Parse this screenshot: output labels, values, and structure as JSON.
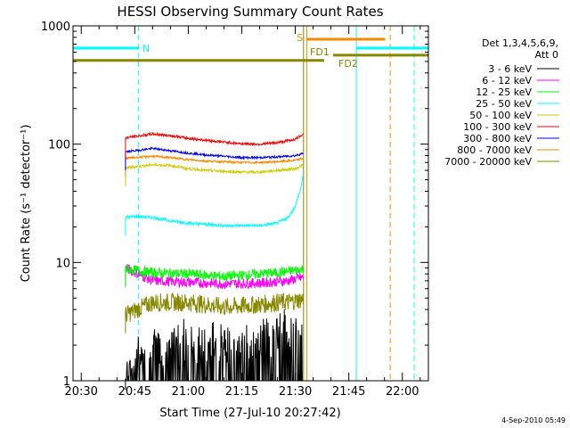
{
  "chart_data": {
    "type": "line",
    "title": "HESSI Observing Summary Count Rates",
    "xlabel": "Start Time (27-Jul-10 20:27:42)",
    "ylabel": "Count Rate (s⁻¹ detector⁻¹)",
    "y_scale": "log",
    "ylim": [
      1,
      1000
    ],
    "x_unit": "minutes after 20:27:42",
    "xlim": [
      -2.3,
      97.3
    ],
    "x_ticks": [
      "20:30",
      "20:45",
      "21:00",
      "21:15",
      "21:30",
      "21:45",
      "22:00"
    ],
    "x_tick_values": [
      0,
      15,
      30,
      45,
      60,
      75,
      90
    ],
    "y_ticks": [
      "1",
      "10",
      "100",
      "1000"
    ],
    "y_tick_values": [
      1,
      10,
      100,
      1000
    ],
    "legend_title": [
      "Det 1,3,4,5,6,9,",
      "Att 0"
    ],
    "legend_position": "top-right",
    "series": [
      {
        "name": "3 - 6 keV",
        "color": "#000000",
        "x": [
          12.4,
          20,
          30,
          40,
          50,
          55,
          58,
          62.3
        ],
        "y": [
          1.2,
          1.5,
          1.8,
          1.6,
          1.9,
          2.0,
          2.2,
          2.2
        ]
      },
      {
        "name": "6 - 12 keV",
        "color": "#ff00ff",
        "x": [
          12.4,
          20,
          30,
          40,
          50,
          55,
          58,
          62.3
        ],
        "y": [
          9.0,
          7.0,
          6.8,
          6.6,
          6.7,
          6.9,
          7.0,
          7.5
        ]
      },
      {
        "name": "12 - 25 keV",
        "color": "#00ff00",
        "x": [
          12.4,
          20,
          30,
          40,
          50,
          55,
          58,
          62.3
        ],
        "y": [
          8.8,
          8.2,
          8.0,
          7.6,
          8.0,
          8.2,
          8.4,
          8.8
        ]
      },
      {
        "name": "25 - 50 keV",
        "color": "#00ffff",
        "x": [
          12.4,
          15,
          20,
          25,
          30,
          35,
          40,
          45,
          50,
          55,
          58,
          60,
          61.5,
          62.3
        ],
        "y": [
          24,
          24.5,
          24,
          22.5,
          21.5,
          21,
          20.5,
          20.5,
          20.5,
          21.5,
          24,
          30,
          42,
          58
        ]
      },
      {
        "name": "50 - 100 keV",
        "color": "#cccc00",
        "x": [
          12.4,
          20,
          25,
          30,
          35,
          40,
          45,
          50,
          55,
          60,
          62.3
        ],
        "y": [
          63,
          67,
          66,
          62,
          60,
          59,
          58,
          58,
          60,
          62,
          67
        ]
      },
      {
        "name": "100 - 300 keV",
        "color": "#ff0000",
        "x": [
          12.4,
          20,
          25,
          30,
          35,
          40,
          45,
          50,
          55,
          60,
          62.3
        ],
        "y": [
          113,
          122,
          118,
          112,
          108,
          104,
          101,
          100,
          103,
          110,
          123
        ]
      },
      {
        "name": "300 - 800 keV",
        "color": "#0000ff",
        "x": [
          12.4,
          20,
          25,
          30,
          35,
          40,
          45,
          50,
          55,
          60,
          62.3
        ],
        "y": [
          86,
          92,
          88,
          84,
          81,
          79,
          77,
          77,
          78,
          80,
          84
        ]
      },
      {
        "name": "800 - 7000 keV",
        "color": "#ff8800",
        "x": [
          12.4,
          20,
          25,
          30,
          35,
          40,
          45,
          50,
          55,
          60,
          62.3
        ],
        "y": [
          76,
          79,
          77,
          74,
          72,
          71,
          70,
          70,
          71,
          73,
          76
        ]
      },
      {
        "name": "7000 - 20000 keV",
        "color": "#888800",
        "x": [
          12.4,
          20,
          30,
          40,
          50,
          55,
          58,
          62.3
        ],
        "y": [
          3.6,
          4.6,
          4.6,
          4.2,
          4.4,
          4.6,
          4.6,
          4.9
        ]
      }
    ],
    "annotations": [
      {
        "text": "N",
        "color": "#00ffff",
        "x_range": [
          -2.3,
          16.1
        ],
        "y": 650
      },
      {
        "text": "S",
        "color": "#ff8800",
        "x_range": [
          63.2,
          85.2
        ],
        "y": 770
      },
      {
        "text": "FD1",
        "color": "#888800",
        "x_range": [
          -2.3,
          68.1
        ],
        "y": 510
      },
      {
        "text": "FD2",
        "color": "#888800",
        "x_range": [
          70.6,
          97.3
        ],
        "y": 565
      }
    ],
    "cyan_bar_right": {
      "color": "#00ffff",
      "x_range": [
        77.1,
        97.3
      ],
      "y": 650
    },
    "vlines": [
      {
        "x": 16.1,
        "color": "#00ffff",
        "style": "dashed"
      },
      {
        "x": 93.3,
        "color": "#00ffff",
        "style": "dashed"
      },
      {
        "x": 86.6,
        "color": "#ff8800",
        "style": "dashed"
      },
      {
        "x": 63.2,
        "color": "#ff8800",
        "style": "solid"
      },
      {
        "x": 77.1,
        "color": "#00ffff",
        "style": "solid"
      },
      {
        "x": 62.3,
        "color": "#888800",
        "style": "solid"
      }
    ],
    "footer": "4-Sep-2010 05:49"
  }
}
